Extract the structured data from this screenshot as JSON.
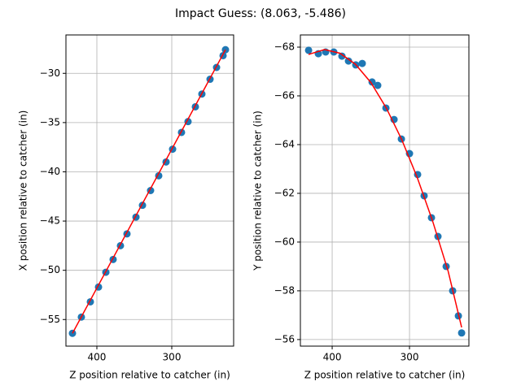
{
  "title": "Impact Guess: (8.063, -5.486)",
  "chart_data": [
    {
      "type": "scatter",
      "xlabel": "Z position relative to catcher (in)",
      "ylabel": "X position relative to catcher (in)",
      "xlim": [
        441.3,
        217.4
      ],
      "ylim": [
        -57.7,
        -26.1
      ],
      "xticks": [
        400,
        300
      ],
      "yticks": [
        {
          "value": -55,
          "label": "−55"
        },
        {
          "value": -50,
          "label": "−50"
        },
        {
          "value": -45,
          "label": "−45"
        },
        {
          "value": -40,
          "label": "−40"
        },
        {
          "value": -35,
          "label": "−35"
        },
        {
          "value": -30,
          "label": "−30"
        }
      ],
      "grid": true,
      "series": [
        {
          "kind": "scatter",
          "color": "#1f77b4",
          "x": [
            432.6,
            420.7,
            408.7,
            397.8,
            388.0,
            378.3,
            368.5,
            359.8,
            347.8,
            339.1,
            328.3,
            317.4,
            307.6,
            298.9,
            287.0,
            278.3,
            268.5,
            259.8,
            248.9,
            240.2,
            231.5,
            228.3
          ],
          "values": [
            -56.4,
            -54.75,
            -53.2,
            -51.7,
            -50.2,
            -48.9,
            -47.5,
            -46.3,
            -44.6,
            -43.4,
            -41.9,
            -40.4,
            -39.0,
            -37.7,
            -36.0,
            -34.9,
            -33.4,
            -32.1,
            -30.6,
            -29.4,
            -28.2,
            -27.6
          ]
        },
        {
          "kind": "line",
          "color": "#ff0000",
          "x": [
            432.6,
            228.3
          ],
          "values": [
            -56.4,
            -27.6
          ]
        }
      ]
    },
    {
      "type": "scatter",
      "xlabel": "Z position relative to catcher (in)",
      "ylabel": "Y position relative to catcher (in)",
      "xlim": [
        441.1,
        223.2
      ],
      "ylim": [
        -55.73,
        -68.5
      ],
      "xticks": [
        400,
        300
      ],
      "yticks": [
        {
          "value": -68,
          "label": "−68"
        },
        {
          "value": -66,
          "label": "−66"
        },
        {
          "value": -64,
          "label": "−64"
        },
        {
          "value": -62,
          "label": "−62"
        },
        {
          "value": -60,
          "label": "−60"
        },
        {
          "value": -58,
          "label": "−58"
        },
        {
          "value": -56,
          "label": "−56"
        }
      ],
      "grid": true,
      "series": [
        {
          "kind": "scatter",
          "color": "#1f77b4",
          "x": [
            430.5,
            417.9,
            408.4,
            397.9,
            387.4,
            378.9,
            369.5,
            361.1,
            348.4,
            341.1,
            330.5,
            320.0,
            310.5,
            300.0,
            289.5,
            281.1,
            271.6,
            263.2,
            252.6,
            244.2,
            236.8,
            232.6
          ],
          "values": [
            -67.87,
            -67.73,
            -67.8,
            -67.8,
            -67.63,
            -67.43,
            -67.27,
            -67.33,
            -66.57,
            -66.43,
            -65.5,
            -65.03,
            -64.23,
            -63.63,
            -62.77,
            -61.9,
            -61.0,
            -60.23,
            -59.0,
            -58.0,
            -56.97,
            -56.27
          ]
        },
        {
          "kind": "line",
          "color": "#ff0000",
          "x": [
            430.5,
            410,
            390,
            370,
            350,
            330,
            310,
            290,
            270,
            250,
            232.6
          ],
          "values": [
            -67.7,
            -67.9,
            -67.75,
            -67.3,
            -66.55,
            -65.5,
            -64.2,
            -62.65,
            -60.85,
            -58.8,
            -56.5
          ]
        }
      ]
    }
  ]
}
